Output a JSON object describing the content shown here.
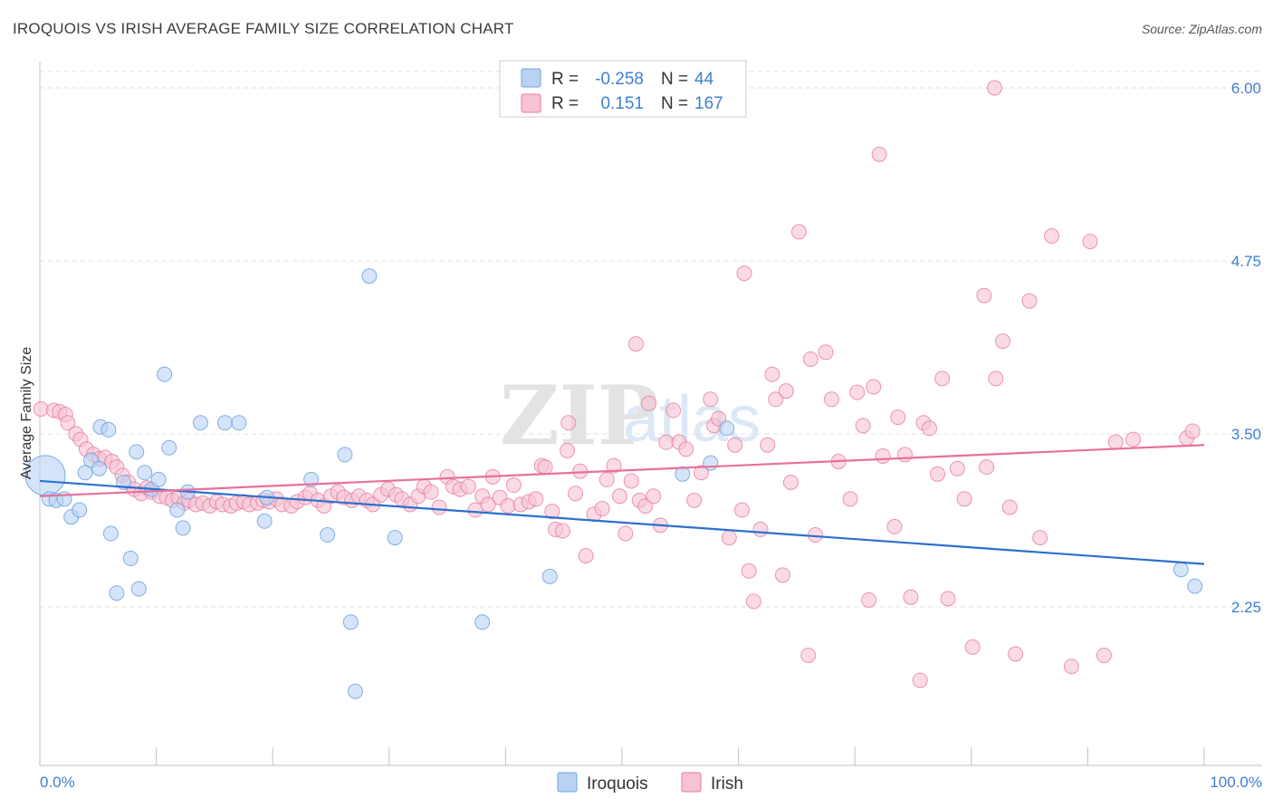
{
  "title": "IROQUOIS VS IRISH AVERAGE FAMILY SIZE CORRELATION CHART",
  "source": "Source: ZipAtlas.com",
  "colors": {
    "iroquois": "#6fa3e0",
    "iroquois_fill": "#b9d2f3",
    "irish": "#e87aa0",
    "irish_fill": "#f7c3d4",
    "iroquois_line": "#2d6fd0",
    "irish_line": "#e8709a",
    "tick": "#3f7fd0"
  },
  "legend": {
    "rows": [
      {
        "r_label": "R =",
        "r_value": "-0.258",
        "n_label": "N =",
        "n_value": "44"
      },
      {
        "r_label": "R =",
        "r_value": "0.151",
        "n_label": "N =",
        "n_value": "167"
      }
    ]
  },
  "chart_data": {
    "type": "scatter",
    "title": "IROQUOIS VS IRISH AVERAGE FAMILY SIZE CORRELATION CHART",
    "xlabel": "",
    "ylabel": "Average Family Size",
    "xlim": [
      0,
      100
    ],
    "ylim": [
      1.2,
      6.1
    ],
    "x_tick_labels": [
      "0.0%",
      "100.0%"
    ],
    "y_ticks": [
      2.25,
      3.5,
      4.75,
      6.0
    ],
    "y_tick_labels": [
      "2.25",
      "3.50",
      "4.75",
      "6.00"
    ],
    "grid": true,
    "legend_position": "top-center",
    "series": [
      {
        "name": "Iroquois",
        "trend": [
          [
            0,
            3.16
          ],
          [
            100,
            2.56
          ]
        ],
        "points": [
          [
            0.3,
            3.2
          ],
          [
            0.8,
            3.03
          ],
          [
            1.4,
            3.02
          ],
          [
            2.1,
            3.03
          ],
          [
            2.7,
            2.9
          ],
          [
            3.4,
            2.95
          ],
          [
            3.9,
            3.22
          ],
          [
            4.4,
            3.31
          ],
          [
            5.1,
            3.25
          ],
          [
            5.2,
            3.55
          ],
          [
            5.9,
            3.53
          ],
          [
            6.1,
            2.78
          ],
          [
            6.6,
            2.35
          ],
          [
            7.2,
            3.15
          ],
          [
            7.8,
            2.6
          ],
          [
            8.3,
            3.37
          ],
          [
            8.5,
            2.38
          ],
          [
            9.0,
            3.22
          ],
          [
            9.6,
            3.1
          ],
          [
            10.2,
            3.17
          ],
          [
            10.7,
            3.93
          ],
          [
            11.1,
            3.4
          ],
          [
            11.8,
            2.95
          ],
          [
            12.3,
            2.82
          ],
          [
            12.7,
            3.08
          ],
          [
            13.8,
            3.58
          ],
          [
            15.9,
            3.58
          ],
          [
            17.1,
            3.58
          ],
          [
            19.3,
            2.87
          ],
          [
            19.5,
            3.04
          ],
          [
            23.3,
            3.17
          ],
          [
            24.7,
            2.77
          ],
          [
            26.2,
            3.35
          ],
          [
            26.7,
            2.14
          ],
          [
            27.1,
            1.64
          ],
          [
            28.3,
            4.64
          ],
          [
            30.5,
            2.75
          ],
          [
            38.0,
            2.14
          ],
          [
            43.8,
            2.47
          ],
          [
            55.2,
            3.21
          ],
          [
            57.6,
            3.29
          ],
          [
            59.0,
            3.54
          ],
          [
            98.0,
            2.52
          ],
          [
            99.2,
            2.4
          ]
        ]
      },
      {
        "name": "Irish",
        "trend": [
          [
            0,
            3.05
          ],
          [
            100,
            3.42
          ]
        ],
        "points": [
          [
            0.1,
            3.68
          ],
          [
            1.2,
            3.67
          ],
          [
            1.7,
            3.66
          ],
          [
            2.2,
            3.64
          ],
          [
            2.4,
            3.58
          ],
          [
            3.1,
            3.5
          ],
          [
            3.5,
            3.46
          ],
          [
            4.0,
            3.39
          ],
          [
            4.6,
            3.35
          ],
          [
            5.1,
            3.32
          ],
          [
            5.6,
            3.33
          ],
          [
            6.2,
            3.3
          ],
          [
            6.6,
            3.26
          ],
          [
            7.1,
            3.2
          ],
          [
            7.6,
            3.15
          ],
          [
            8.1,
            3.1
          ],
          [
            8.7,
            3.07
          ],
          [
            9.2,
            3.11
          ],
          [
            9.6,
            3.08
          ],
          [
            10.3,
            3.05
          ],
          [
            10.9,
            3.04
          ],
          [
            11.4,
            3.02
          ],
          [
            11.9,
            3.04
          ],
          [
            12.4,
            3.0
          ],
          [
            12.8,
            3.02
          ],
          [
            13.4,
            2.99
          ],
          [
            14.0,
            3.0
          ],
          [
            14.6,
            2.98
          ],
          [
            15.2,
            3.01
          ],
          [
            15.7,
            2.99
          ],
          [
            16.4,
            2.98
          ],
          [
            16.9,
            3.0
          ],
          [
            17.5,
            3.01
          ],
          [
            18.0,
            2.99
          ],
          [
            18.7,
            3.0
          ],
          [
            19.2,
            3.02
          ],
          [
            19.7,
            3.01
          ],
          [
            20.3,
            3.03
          ],
          [
            20.8,
            2.99
          ],
          [
            21.6,
            2.98
          ],
          [
            22.1,
            3.01
          ],
          [
            22.8,
            3.04
          ],
          [
            23.2,
            3.07
          ],
          [
            23.9,
            3.02
          ],
          [
            24.4,
            2.98
          ],
          [
            25.0,
            3.05
          ],
          [
            25.6,
            3.08
          ],
          [
            26.1,
            3.04
          ],
          [
            26.8,
            3.02
          ],
          [
            27.4,
            3.05
          ],
          [
            28.1,
            3.02
          ],
          [
            28.6,
            2.99
          ],
          [
            29.3,
            3.06
          ],
          [
            29.9,
            3.1
          ],
          [
            30.6,
            3.06
          ],
          [
            31.1,
            3.03
          ],
          [
            31.8,
            2.99
          ],
          [
            32.5,
            3.05
          ],
          [
            33.0,
            3.12
          ],
          [
            33.6,
            3.08
          ],
          [
            34.3,
            2.97
          ],
          [
            35.0,
            3.19
          ],
          [
            35.5,
            3.12
          ],
          [
            36.1,
            3.1
          ],
          [
            36.8,
            3.12
          ],
          [
            37.4,
            2.95
          ],
          [
            38.0,
            3.05
          ],
          [
            38.5,
            2.99
          ],
          [
            38.9,
            3.19
          ],
          [
            39.5,
            3.04
          ],
          [
            40.2,
            2.98
          ],
          [
            40.7,
            3.13
          ],
          [
            41.3,
            2.99
          ],
          [
            42.0,
            3.01
          ],
          [
            42.6,
            3.03
          ],
          [
            43.1,
            3.27
          ],
          [
            43.4,
            3.26
          ],
          [
            44.0,
            2.94
          ],
          [
            44.3,
            2.81
          ],
          [
            44.9,
            2.8
          ],
          [
            45.3,
            3.38
          ],
          [
            45.4,
            3.58
          ],
          [
            46.0,
            3.07
          ],
          [
            46.4,
            3.23
          ],
          [
            46.9,
            2.62
          ],
          [
            47.6,
            2.92
          ],
          [
            48.3,
            2.96
          ],
          [
            48.7,
            3.17
          ],
          [
            49.3,
            3.27
          ],
          [
            49.8,
            3.05
          ],
          [
            50.3,
            2.78
          ],
          [
            50.8,
            3.16
          ],
          [
            51.2,
            4.15
          ],
          [
            51.5,
            3.02
          ],
          [
            52.0,
            2.98
          ],
          [
            52.3,
            3.72
          ],
          [
            52.7,
            3.05
          ],
          [
            53.3,
            2.84
          ],
          [
            53.8,
            3.44
          ],
          [
            54.4,
            3.67
          ],
          [
            54.9,
            3.44
          ],
          [
            55.5,
            3.39
          ],
          [
            56.2,
            3.02
          ],
          [
            56.8,
            3.22
          ],
          [
            57.6,
            3.75
          ],
          [
            57.9,
            3.56
          ],
          [
            58.3,
            3.61
          ],
          [
            59.2,
            2.75
          ],
          [
            59.7,
            3.42
          ],
          [
            60.3,
            2.95
          ],
          [
            60.5,
            4.66
          ],
          [
            60.9,
            2.51
          ],
          [
            61.3,
            2.29
          ],
          [
            61.9,
            2.81
          ],
          [
            62.5,
            3.42
          ],
          [
            62.9,
            3.93
          ],
          [
            63.2,
            3.75
          ],
          [
            63.8,
            2.48
          ],
          [
            64.1,
            3.81
          ],
          [
            64.5,
            3.15
          ],
          [
            65.2,
            4.96
          ],
          [
            66.0,
            1.9
          ],
          [
            66.2,
            4.04
          ],
          [
            66.6,
            2.77
          ],
          [
            67.5,
            4.09
          ],
          [
            68.0,
            3.75
          ],
          [
            68.6,
            3.3
          ],
          [
            69.6,
            3.03
          ],
          [
            70.2,
            3.8
          ],
          [
            70.7,
            3.56
          ],
          [
            71.2,
            2.3
          ],
          [
            71.6,
            3.84
          ],
          [
            72.1,
            5.52
          ],
          [
            72.4,
            3.34
          ],
          [
            73.4,
            2.83
          ],
          [
            73.7,
            3.62
          ],
          [
            74.3,
            3.35
          ],
          [
            74.8,
            2.32
          ],
          [
            75.6,
            1.72
          ],
          [
            75.9,
            3.58
          ],
          [
            76.4,
            3.54
          ],
          [
            77.1,
            3.21
          ],
          [
            77.5,
            3.9
          ],
          [
            78.0,
            2.31
          ],
          [
            78.8,
            3.25
          ],
          [
            79.4,
            3.03
          ],
          [
            80.1,
            1.96
          ],
          [
            81.1,
            4.5
          ],
          [
            81.3,
            3.26
          ],
          [
            82.1,
            3.9
          ],
          [
            82.7,
            4.17
          ],
          [
            83.3,
            2.97
          ],
          [
            83.8,
            1.91
          ],
          [
            85.0,
            4.46
          ],
          [
            85.9,
            2.75
          ],
          [
            86.9,
            4.93
          ],
          [
            88.6,
            1.82
          ],
          [
            90.2,
            4.89
          ],
          [
            91.4,
            1.9
          ],
          [
            92.4,
            3.44
          ],
          [
            93.9,
            3.46
          ],
          [
            98.5,
            3.47
          ],
          [
            99.0,
            3.52
          ],
          [
            82.0,
            6.0
          ]
        ]
      }
    ]
  },
  "bottom_legend": [
    {
      "label": "Iroquois"
    },
    {
      "label": "Irish"
    }
  ],
  "watermark": {
    "text_zip": "ZIP",
    "text_atlas": "atlas"
  }
}
